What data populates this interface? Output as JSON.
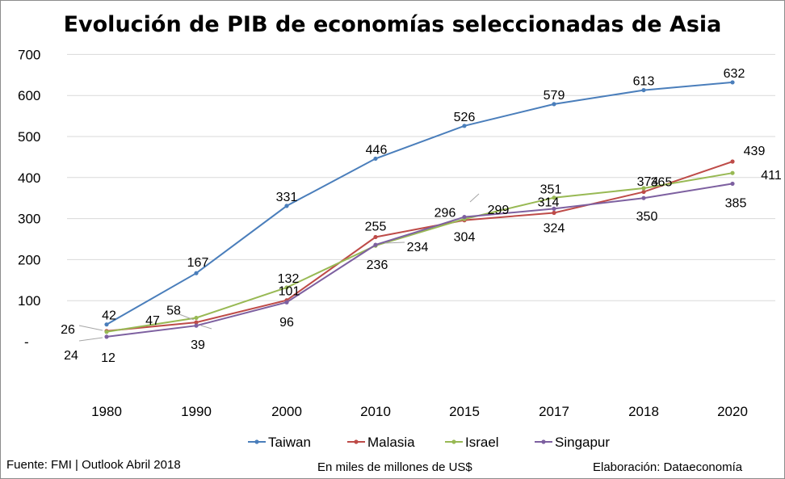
{
  "chart_data": {
    "type": "line",
    "title": "Evolución de PIB de economías seleccionadas de Asia",
    "categories": [
      "1980",
      "1990",
      "2000",
      "2010",
      "2015",
      "2017",
      "2018",
      "2020"
    ],
    "y_ticks": [
      {
        "value": 0,
        "label": "-"
      },
      {
        "value": 100,
        "label": "100"
      },
      {
        "value": 200,
        "label": "200"
      },
      {
        "value": 300,
        "label": "300"
      },
      {
        "value": 400,
        "label": "400"
      },
      {
        "value": 500,
        "label": "500"
      },
      {
        "value": 600,
        "label": "600"
      },
      {
        "value": 700,
        "label": "700"
      }
    ],
    "ylim": [
      -100,
      700
    ],
    "grid": true,
    "legend": "bottom",
    "series": [
      {
        "name": "Taiwan",
        "color": "#4a7ebb",
        "values": [
          42,
          167,
          331,
          446,
          526,
          579,
          613,
          632
        ]
      },
      {
        "name": "Malasia",
        "color": "#be4b48",
        "values": [
          26,
          47,
          101,
          255,
          296,
          314,
          365,
          439
        ]
      },
      {
        "name": "Israel",
        "color": "#98b954",
        "values": [
          24,
          58,
          132,
          234,
          299,
          351,
          374,
          411
        ]
      },
      {
        "name": "Singapur",
        "color": "#7d60a0",
        "values": [
          12,
          39,
          96,
          236,
          304,
          324,
          350,
          385
        ]
      }
    ]
  },
  "footer": {
    "source": "Fuente: FMI | Outlook Abril 2018",
    "units": "En miles de millones de US$",
    "credit": "Elaboración: Dataeconomía"
  }
}
